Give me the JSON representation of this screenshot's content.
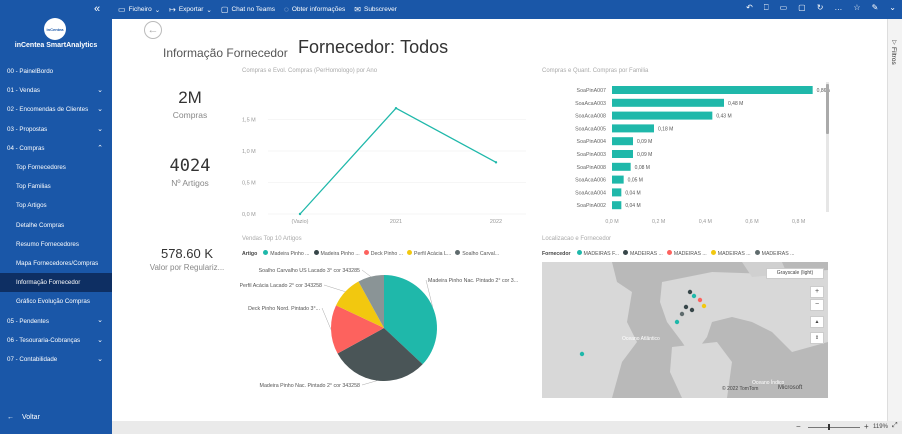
{
  "sidebar": {
    "brand": "inCentea SmartAnalytics",
    "logo_text": "inCentea",
    "items": [
      {
        "label": "00 - PainelBordo",
        "type": "main",
        "chevron": false
      },
      {
        "label": "01 - Vendas",
        "type": "main",
        "chevron": true
      },
      {
        "label": "02 - Encomendas de Clientes",
        "type": "main",
        "chevron": true
      },
      {
        "label": "03 - Propostas",
        "type": "main",
        "chevron": true
      },
      {
        "label": "04 - Compras",
        "type": "main",
        "chevron": true,
        "expanded": true
      },
      {
        "label": "Top Fornecedores",
        "type": "sub"
      },
      {
        "label": "Top Familias",
        "type": "sub"
      },
      {
        "label": "Top Artigos",
        "type": "sub"
      },
      {
        "label": "Detalhe Compras",
        "type": "sub"
      },
      {
        "label": "Resumo Fornecedores",
        "type": "sub"
      },
      {
        "label": "Mapa Fornecedores/Compras",
        "type": "sub"
      },
      {
        "label": "Informação Fornecedor",
        "type": "sub",
        "active": true
      },
      {
        "label": "Gráfico Evolução Compras",
        "type": "sub"
      },
      {
        "label": "05 - Pendentes",
        "type": "main",
        "chevron": true
      },
      {
        "label": "06 - Tesouraria-Cobranças",
        "type": "main",
        "chevron": true
      },
      {
        "label": "07 - Contabilidade",
        "type": "main",
        "chevron": true
      }
    ],
    "back_label": "Voltar"
  },
  "topbar": {
    "file": "Ficheiro",
    "export": "Exportar",
    "teams": "Chat no Teams",
    "insights": "Obter informações",
    "subscribe": "Subscrever"
  },
  "page": {
    "subtitle": "Informação Fornecedor",
    "title_label": "Fornecedor:",
    "title_value": "Todos"
  },
  "cards": [
    {
      "value": "2M",
      "label": "Compras"
    },
    {
      "value": "4024",
      "label": "Nº Artigos"
    },
    {
      "value": "578.60 K",
      "label": "Valor por Regulariz..."
    }
  ],
  "filters_label": "Filtros",
  "zoom": "119%",
  "line_chart": {
    "title": "Compras e Evol. Compras (PerHomologo) por Ano",
    "ytick_labels": [
      "1,5 M",
      "1,0 M",
      "0,5 M",
      "0,0 M"
    ],
    "chart_data": {
      "type": "line",
      "categories": [
        "(Vazio)",
        "2021",
        "2022"
      ],
      "values": [
        0.0,
        1.68,
        0.82
      ],
      "ylim": [
        0,
        2.0
      ],
      "color": "#1fb8aa"
    }
  },
  "bar_chart": {
    "title": "Compras e Quant. Compras por Familia",
    "xtick_labels": [
      "0,0 M",
      "0,2 M",
      "0,4 M",
      "0,6 M",
      "0,8 M"
    ],
    "chart_data": {
      "type": "bar",
      "orientation": "horizontal",
      "categories": [
        "SoaPinA007",
        "SoaAcaA003",
        "SoaAcaA008",
        "SoaAcaA005",
        "SoaPinA004",
        "SoaPinA003",
        "SoaPinA008",
        "SoaAcaA006",
        "SoaAcaA004",
        "SoaPinA002"
      ],
      "values": [
        0.86,
        0.48,
        0.43,
        0.18,
        0.09,
        0.09,
        0.08,
        0.05,
        0.04,
        0.04
      ],
      "data_labels": [
        "0,86 M",
        "0,48 M",
        "0,43 M",
        "0,18 M",
        "0,09 M",
        "0,09 M",
        "0,08 M",
        "0,05 M",
        "0,04 M",
        "0,04 M"
      ],
      "xlim": [
        0,
        0.9
      ],
      "color": "#1fb8aa"
    }
  },
  "pie_chart": {
    "title": "Vendas Top 10 Artigos",
    "legend_title": "Artigo",
    "legend": [
      {
        "name": "Madeira Pinho ...",
        "color": "#1fb8aa"
      },
      {
        "name": "Madeira Pinho ...",
        "color": "#374649"
      },
      {
        "name": "Deck Pinho ...",
        "color": "#fd625e"
      },
      {
        "name": "Perfil Acácia L...",
        "color": "#f2c80f"
      },
      {
        "name": "Soalho Carval...",
        "color": "#5f6b6d"
      }
    ],
    "chart_data": {
      "type": "pie",
      "labels": [
        "Madeira Pinho Nac. Pintado 2° cor 3...",
        "Madeira Pinho Nac. Pintado 2° cor 343258",
        "Deck Pinho Nord. Pintado 3°...",
        "Perfil Acácia Lacado 2° cor 343258",
        "Soalho Carvalho US Lacado 3° cor 343285"
      ],
      "values": [
        37,
        30,
        15,
        10,
        8
      ],
      "colors": [
        "#1fb8aa",
        "#4a5557",
        "#fd625e",
        "#f2c80f",
        "#8a9496"
      ]
    }
  },
  "map": {
    "title": "Localizacao e Fornecedor",
    "legend_title": "Fornecedor",
    "legend": [
      {
        "name": "MADEIRAS F...",
        "color": "#1fb8aa"
      },
      {
        "name": "MADEIRAS ...",
        "color": "#374649"
      },
      {
        "name": "MADEIRAS ...",
        "color": "#fd625e"
      },
      {
        "name": "MADEIRAS ...",
        "color": "#f2c80f"
      },
      {
        "name": "MADEIRAS ...",
        "color": "#5f6b6d"
      }
    ],
    "style_label": "Grayscale (light)",
    "ocean_label": "Oceano Atlântico",
    "ocean_label_2": "Oceano Índico",
    "copyright": "© 2022 TomTom",
    "provider": "Microsoft"
  }
}
